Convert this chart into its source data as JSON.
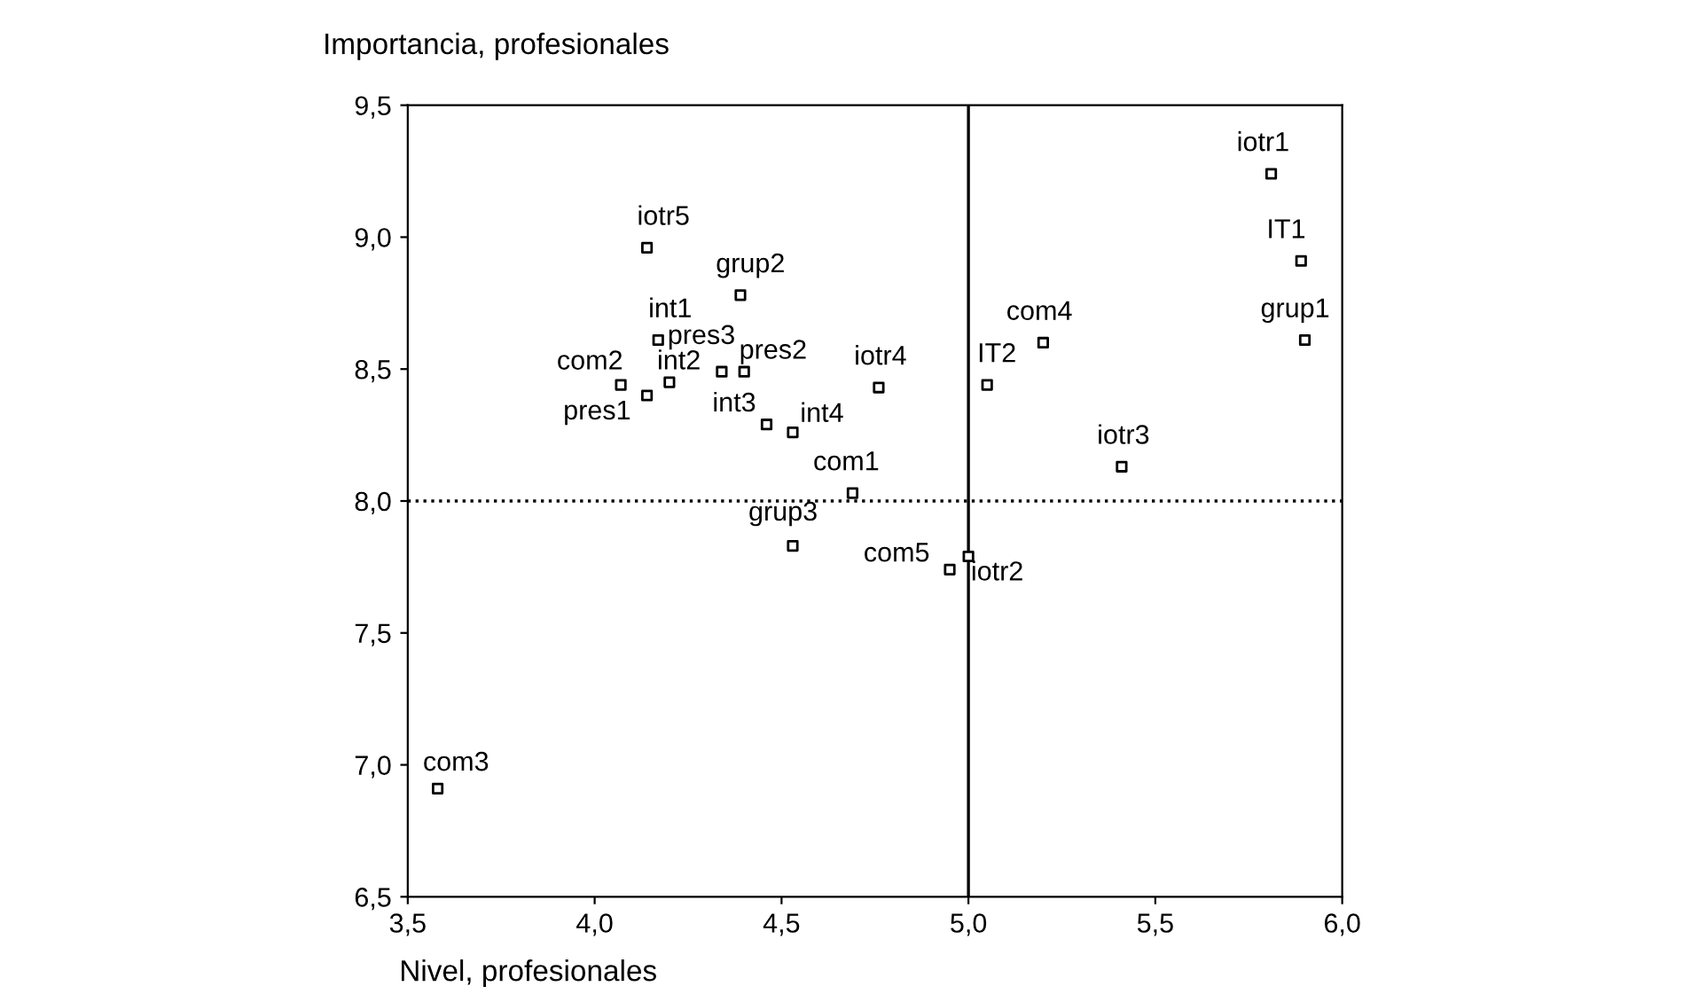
{
  "chart_data": {
    "type": "scatter",
    "xlabel": "Nivel, profesionales",
    "ylabel": "Importancia, profesionales",
    "marker": "square",
    "grid": false,
    "legend": false,
    "x": [
      3.58,
      4.14,
      4.39,
      4.17,
      4.07,
      4.14,
      4.2,
      4.34,
      4.4,
      4.46,
      4.53,
      4.76,
      4.69,
      4.53,
      4.95,
      5.0,
      5.05,
      5.2,
      5.41,
      5.81,
      5.89,
      5.9
    ],
    "series": [
      {
        "color": "#000000",
        "values": [
          6.91,
          8.96,
          8.78,
          8.61,
          8.44,
          8.4,
          8.45,
          8.49,
          8.49,
          8.29,
          8.26,
          8.43,
          8.03,
          7.83,
          7.74,
          7.79,
          8.44,
          8.6,
          8.13,
          9.24,
          8.91,
          8.61
        ]
      }
    ],
    "annotations": [
      {
        "text": "com3",
        "x": 3.58,
        "y": 6.91
      },
      {
        "text": "iotr5",
        "x": 4.14,
        "y": 8.96
      },
      {
        "text": "grup2",
        "x": 4.39,
        "y": 8.78
      },
      {
        "text": "int1",
        "x": 4.17,
        "y": 8.61
      },
      {
        "text": "com2",
        "x": 4.07,
        "y": 8.44
      },
      {
        "text": "pres1",
        "x": 4.14,
        "y": 8.4
      },
      {
        "text": "int2",
        "x": 4.2,
        "y": 8.45
      },
      {
        "text": "pres3",
        "x": 4.34,
        "y": 8.49
      },
      {
        "text": "pres2",
        "x": 4.4,
        "y": 8.49
      },
      {
        "text": "int3",
        "x": 4.46,
        "y": 8.29
      },
      {
        "text": "int4",
        "x": 4.53,
        "y": 8.26
      },
      {
        "text": "iotr4",
        "x": 4.76,
        "y": 8.43
      },
      {
        "text": "com1",
        "x": 4.69,
        "y": 8.03
      },
      {
        "text": "grup3",
        "x": 4.53,
        "y": 7.83
      },
      {
        "text": "com5",
        "x": 4.95,
        "y": 7.74
      },
      {
        "text": "iotr2",
        "x": 5.0,
        "y": 7.79
      },
      {
        "text": "IT2",
        "x": 5.05,
        "y": 8.44
      },
      {
        "text": "com4",
        "x": 5.2,
        "y": 8.6
      },
      {
        "text": "iotr3",
        "x": 5.41,
        "y": 8.13
      },
      {
        "text": "iotr1",
        "x": 5.81,
        "y": 9.24
      },
      {
        "text": "IT1",
        "x": 5.89,
        "y": 8.91
      },
      {
        "text": "grup1",
        "x": 5.9,
        "y": 8.61
      }
    ],
    "ref_lines": [
      {
        "axis": "x",
        "value": 5.0,
        "line_style": "solid",
        "color": "#000000"
      },
      {
        "axis": "y",
        "value": 8.0,
        "line_style": "dotted",
        "color": "#000000"
      }
    ],
    "xlim": [
      3.5,
      6.0
    ],
    "ylim": [
      6.5,
      9.5
    ],
    "xticks": [
      {
        "value": 3.5,
        "label": "3,5"
      },
      {
        "value": 4.0,
        "label": "4,0"
      },
      {
        "value": 4.5,
        "label": "4,5"
      },
      {
        "value": 5.0,
        "label": "5,0"
      },
      {
        "value": 5.5,
        "label": "5,5"
      },
      {
        "value": 6.0,
        "label": "6,0"
      }
    ],
    "yticks": [
      {
        "value": 6.5,
        "label": "6,5"
      },
      {
        "value": 7.0,
        "label": "7,0"
      },
      {
        "value": 7.5,
        "label": "7,5"
      },
      {
        "value": 8.0,
        "label": "8,0"
      },
      {
        "value": 8.5,
        "label": "8,5"
      },
      {
        "value": 9.0,
        "label": "9,0"
      },
      {
        "value": 9.5,
        "label": "9,5"
      }
    ]
  }
}
